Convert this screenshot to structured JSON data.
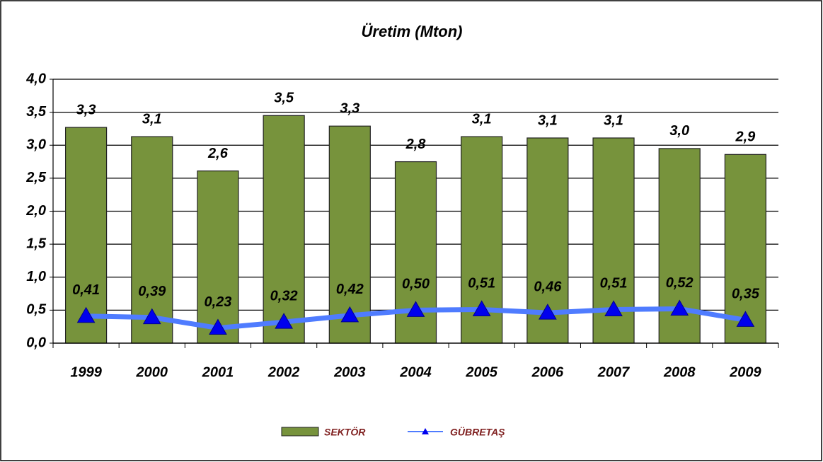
{
  "chart_data": {
    "type": "bar",
    "title": "Üretim (Mton)",
    "categories": [
      "1999",
      "2000",
      "2001",
      "2002",
      "2003",
      "2004",
      "2005",
      "2006",
      "2007",
      "2008",
      "2009"
    ],
    "series": [
      {
        "name": "SEKTÖR",
        "type": "bar",
        "color": "#77933c",
        "values": [
          3.27,
          3.13,
          2.61,
          3.45,
          3.29,
          2.75,
          3.13,
          3.11,
          3.11,
          2.95,
          2.86
        ],
        "value_labels": [
          "3,3",
          "3,1",
          "2,6",
          "3,5",
          "3,3",
          "2,8",
          "3,1",
          "3,1",
          "3,1",
          "3,0",
          "2,9"
        ]
      },
      {
        "name": "GÜBRETAŞ",
        "type": "line",
        "color": "#4f7cff",
        "marker_color": "#0000ee",
        "values": [
          0.41,
          0.39,
          0.23,
          0.32,
          0.42,
          0.5,
          0.51,
          0.46,
          0.51,
          0.52,
          0.35
        ],
        "value_labels": [
          "0,41",
          "0,39",
          "0,23",
          "0,32",
          "0,42",
          "0,50",
          "0,51",
          "0,46",
          "0,51",
          "0,52",
          "0,35"
        ]
      }
    ],
    "ylim": [
      0,
      4
    ],
    "yticks": [
      {
        "value": 0,
        "label": "0,0"
      },
      {
        "value": 0.5,
        "label": "0,5"
      },
      {
        "value": 1,
        "label": "1,0"
      },
      {
        "value": 1.5,
        "label": "1,5"
      },
      {
        "value": 2,
        "label": "2,0"
      },
      {
        "value": 2.5,
        "label": "2,5"
      },
      {
        "value": 3,
        "label": "3,0"
      },
      {
        "value": 3.5,
        "label": "3,5"
      },
      {
        "value": 4,
        "label": "4,0"
      }
    ],
    "grid": true,
    "legend": "bottom"
  }
}
